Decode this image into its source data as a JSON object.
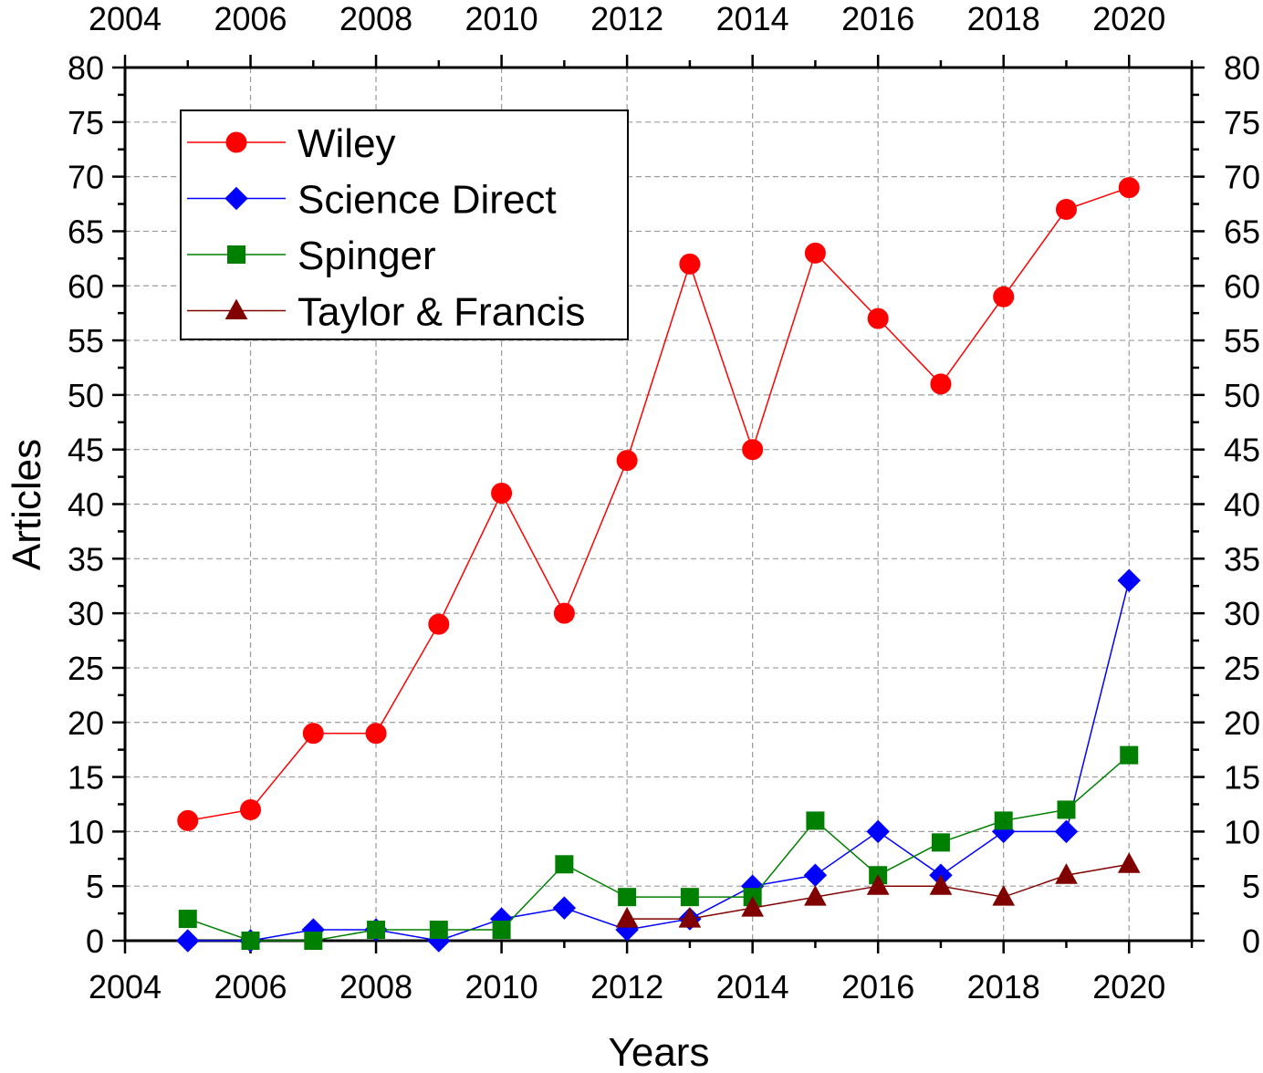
{
  "chart_data": {
    "type": "line",
    "title": "",
    "xlabel": "Years",
    "ylabel": "Articles",
    "xlim": [
      2004,
      2021
    ],
    "ylim": [
      0,
      80
    ],
    "x_ticks": [
      "2004",
      "2006",
      "2008",
      "2010",
      "2012",
      "2014",
      "2016",
      "2018",
      "2020"
    ],
    "y_ticks": [
      "0",
      "5",
      "10",
      "15",
      "20",
      "25",
      "30",
      "35",
      "40",
      "45",
      "50",
      "55",
      "60",
      "65",
      "70",
      "75",
      "80"
    ],
    "grid": true,
    "legend_position": "top-left",
    "x": [
      2005,
      2006,
      2007,
      2008,
      2009,
      2010,
      2011,
      2012,
      2013,
      2014,
      2015,
      2016,
      2017,
      2018,
      2019,
      2020
    ],
    "series": [
      {
        "name": "Wiley",
        "marker": "circle",
        "color": "#ff0000",
        "values": [
          11,
          12,
          19,
          19,
          29,
          41,
          30,
          44,
          62,
          45,
          63,
          57,
          51,
          59,
          67,
          69
        ]
      },
      {
        "name": "Science Direct",
        "marker": "diamond",
        "color": "#0000ff",
        "values": [
          0,
          0,
          1,
          1,
          0,
          2,
          3,
          1,
          2,
          5,
          6,
          10,
          6,
          10,
          10,
          33
        ]
      },
      {
        "name": "Spinger",
        "marker": "square",
        "color": "#008000",
        "values": [
          2,
          0,
          0,
          1,
          1,
          1,
          7,
          4,
          4,
          4,
          11,
          6,
          9,
          11,
          12,
          17
        ]
      },
      {
        "name": "Taylor & Francis",
        "marker": "triangle",
        "color": "#800000",
        "values": [
          null,
          null,
          null,
          null,
          null,
          null,
          null,
          2,
          2,
          3,
          4,
          5,
          5,
          4,
          6,
          7
        ]
      }
    ]
  }
}
